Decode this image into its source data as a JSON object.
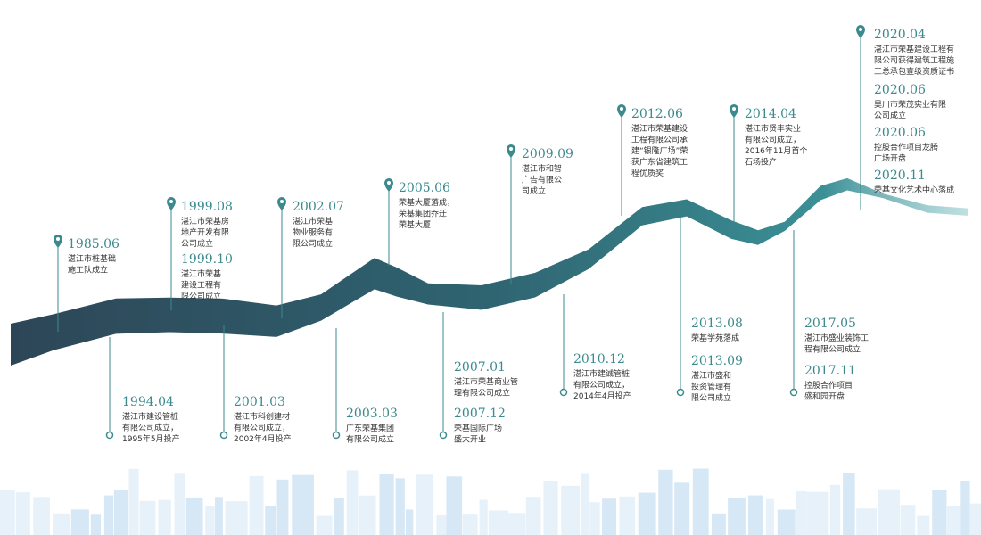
{
  "groups": [
    {
      "entries": [
        {
          "date": "1985.06",
          "lines": [
            "湛江市桩基础",
            "施工队成立"
          ]
        }
      ]
    },
    {
      "entries": [
        {
          "date": "1999.08",
          "lines": [
            "湛江市荣基房",
            "地产开发有限",
            "公司成立"
          ]
        },
        {
          "date": "1999.10",
          "lines": [
            "湛江市荣基",
            "建设工程有",
            "限公司成立"
          ]
        }
      ]
    },
    {
      "entries": [
        {
          "date": "2002.07",
          "lines": [
            "湛江市荣基",
            "物业服务有",
            "限公司成立"
          ]
        }
      ]
    },
    {
      "entries": [
        {
          "date": "2005.06",
          "lines": [
            "荣基大厦落成，",
            "荣基集团乔迁",
            "荣基大厦"
          ]
        }
      ]
    },
    {
      "entries": [
        {
          "date": "2009.09",
          "lines": [
            "湛江市和智",
            "广告有限公",
            "司成立"
          ]
        }
      ]
    },
    {
      "entries": [
        {
          "date": "2012.06",
          "lines": [
            "湛江市荣基建设",
            "工程有限公司承",
            "建“银隆广场”荣",
            "获广东省建筑工",
            "程优质奖"
          ]
        }
      ]
    },
    {
      "entries": [
        {
          "date": "2014.04",
          "lines": [
            "湛江市贤丰实业",
            "有限公司成立，",
            "2016年11月首个",
            "石场投产"
          ]
        }
      ]
    },
    {
      "entries": [
        {
          "date": "2020.04",
          "lines": [
            "湛江市荣基建设工程有",
            "限公司获得建筑工程施",
            "工总承包壹级资质证书"
          ]
        },
        {
          "date": "2020.06",
          "lines": [
            "吴川市荣茂实业有限",
            "公司成立"
          ]
        },
        {
          "date": "2020.06",
          "lines": [
            "控股合作项目龙腾",
            "广场开盘"
          ]
        },
        {
          "date": "2020.11",
          "lines": [
            "荣基文化艺术中心落成"
          ]
        }
      ]
    },
    {
      "entries": [
        {
          "date": "1994.04",
          "lines": [
            "湛江市建设管桩",
            "有限公司成立，",
            "1995年5月投产"
          ]
        }
      ]
    },
    {
      "entries": [
        {
          "date": "2001.03",
          "lines": [
            "湛江市科创建材",
            "有限公司成立，",
            "2002年4月投产"
          ]
        }
      ]
    },
    {
      "entries": [
        {
          "date": "2003.03",
          "lines": [
            "广东荣基集团",
            "有限公司成立"
          ]
        }
      ]
    },
    {
      "entries": [
        {
          "date": "2007.01",
          "lines": [
            "湛江市荣基商业管",
            "理有限公司成立"
          ]
        },
        {
          "date": "2007.12",
          "lines": [
            "荣基国际广场",
            "盛大开业"
          ]
        }
      ]
    },
    {
      "entries": [
        {
          "date": "2010.12",
          "lines": [
            "湛江市建诚管桩",
            "有限公司成立，",
            "2014年4月投产"
          ]
        }
      ]
    },
    {
      "entries": [
        {
          "date": "2013.08",
          "lines": [
            "荣基学苑落成"
          ]
        },
        {
          "date": "2013.09",
          "lines": [
            "湛江市盛和",
            "投资管理有",
            "限公司成立"
          ]
        }
      ]
    },
    {
      "entries": [
        {
          "date": "2017.05",
          "lines": [
            "湛江市盛业装饰工",
            "程有限公司成立"
          ]
        },
        {
          "date": "2017.11",
          "lines": [
            "控股合作项目",
            "盛和园开盘"
          ]
        }
      ]
    }
  ]
}
